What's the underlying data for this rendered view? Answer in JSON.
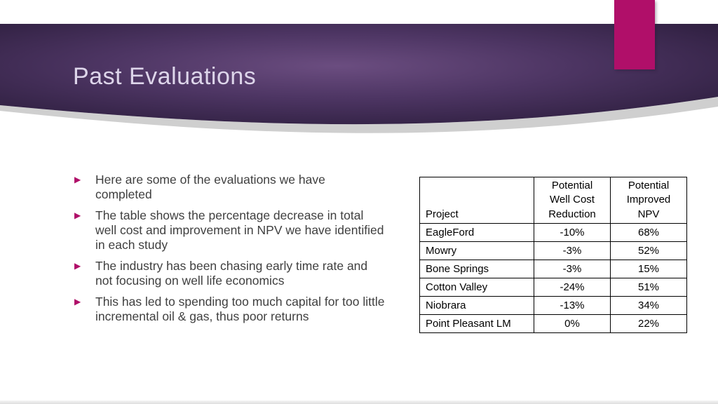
{
  "slide": {
    "title": "Past Evaluations",
    "accent_color": "#b00f69",
    "bullet_glyph": "▶"
  },
  "bullets": [
    "Here are some of the evaluations we have completed",
    "The table shows the percentage decrease in total well cost and improvement in NPV we have identified in each study",
    "The industry has been chasing early time rate and not focusing on well life economics",
    "This has led to spending too much capital for too little incremental oil & gas, thus poor returns"
  ],
  "chart_data": {
    "type": "table",
    "title": "Past Evaluations",
    "columns": [
      "Project",
      "Potential\nWell Cost\nReduction",
      "Potential\nImproved\nNPV"
    ],
    "rows": [
      [
        "EagleFord",
        "-10%",
        "68%"
      ],
      [
        "Mowry",
        "-3%",
        "52%"
      ],
      [
        "Bone Springs",
        "-3%",
        "15%"
      ],
      [
        "Cotton Valley",
        "-24%",
        "51%"
      ],
      [
        "Niobrara",
        "-13%",
        "34%"
      ],
      [
        "Point Pleasant LM",
        "0%",
        "22%"
      ]
    ]
  }
}
